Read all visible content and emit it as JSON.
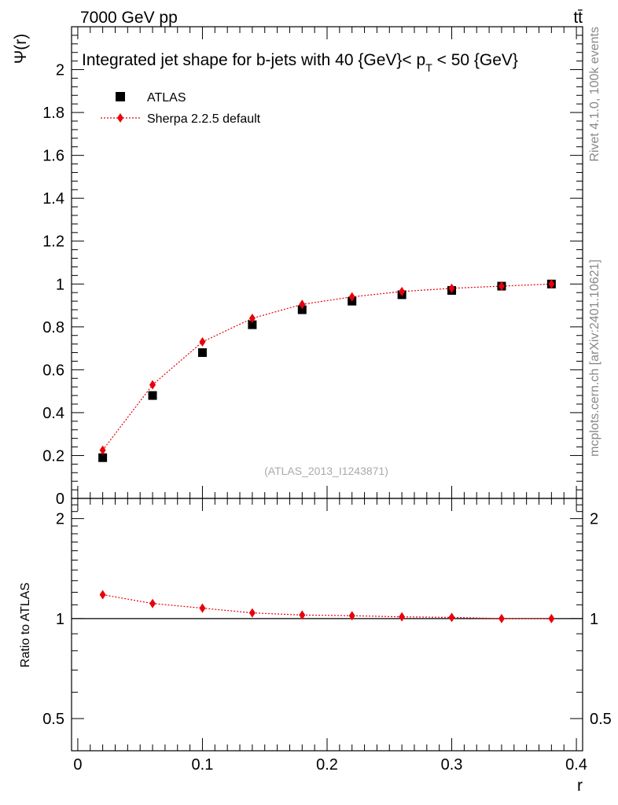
{
  "header": {
    "left": "7000 GeV pp",
    "right": "tt̄"
  },
  "side_labels": {
    "rivet": "Rivet 4.1.0,  100k events",
    "mcplots": "mcplots.cern.ch [arXiv:2401.10621]"
  },
  "watermark": "(ATLAS_2013_I1243871)",
  "chart_data": [
    {
      "panel": "main",
      "type": "scatter",
      "title": "Integrated jet shape for b-jets with 40 {GeV}< p_T < 50 {GeV}",
      "title_parts": {
        "prefix": "Integrated jet shape for b-jets with 40 {GeV}< p",
        "subscript": "T",
        "suffix": " < 50 {GeV}"
      },
      "xlabel": "",
      "ylabel": "Ψ(r)",
      "xlim": [
        -0.005,
        0.405
      ],
      "ylim": [
        0,
        2.2
      ],
      "y_ticks": [
        0,
        0.2,
        0.4,
        0.6,
        0.8,
        1,
        1.2,
        1.4,
        1.6,
        1.8,
        2
      ],
      "y_tick_labels": [
        "0",
        "0.2",
        "0.4",
        "0.6",
        "0.8",
        "1",
        "1.2",
        "1.4",
        "1.6",
        "1.8",
        "2"
      ],
      "legend": {
        "position": "top-left",
        "entries": [
          "ATLAS",
          "Sherpa 2.2.5 default"
        ]
      },
      "x": [
        0.02,
        0.06,
        0.1,
        0.14,
        0.18,
        0.22,
        0.26,
        0.3,
        0.34,
        0.38
      ],
      "series": [
        {
          "name": "ATLAS",
          "marker": "square",
          "color": "#000000",
          "values": [
            0.19,
            0.48,
            0.68,
            0.81,
            0.88,
            0.92,
            0.95,
            0.97,
            0.99,
            1.0
          ]
        },
        {
          "name": "Sherpa 2.2.5 default",
          "marker": "diamond",
          "line": "dotted",
          "color": "#e8000b",
          "values": [
            0.225,
            0.53,
            0.73,
            0.84,
            0.905,
            0.94,
            0.965,
            0.98,
            0.99,
            1.0
          ]
        }
      ]
    },
    {
      "panel": "ratio",
      "type": "line",
      "ylabel": "Ratio to ATLAS",
      "xlabel": "r",
      "xlim": [
        -0.005,
        0.405
      ],
      "ylim": [
        0.4,
        2.3
      ],
      "x_ticks": [
        0,
        0.1,
        0.2,
        0.3,
        0.4
      ],
      "x_tick_labels": [
        "0",
        "0.1",
        "0.2",
        "0.3",
        "0.4"
      ],
      "y_ticks": [
        0.5,
        1,
        2
      ],
      "y_tick_labels": [
        "0.5",
        "1",
        "2"
      ],
      "reference": 1,
      "x": [
        0.02,
        0.06,
        0.1,
        0.14,
        0.18,
        0.22,
        0.26,
        0.3,
        0.34,
        0.38
      ],
      "series": [
        {
          "name": "Sherpa 2.2.5 default",
          "marker": "diamond",
          "line": "dotted",
          "color": "#e8000b",
          "values": [
            1.18,
            1.11,
            1.075,
            1.04,
            1.025,
            1.02,
            1.012,
            1.008,
            1.0,
            1.0
          ]
        }
      ]
    }
  ]
}
